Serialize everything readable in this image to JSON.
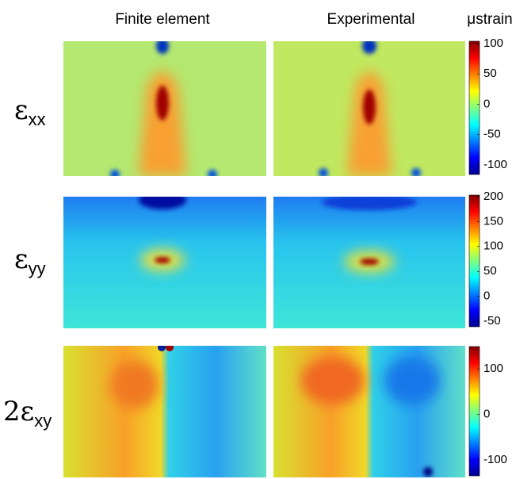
{
  "columns": [
    "Finite element",
    "Experimental"
  ],
  "unit": "μstrain",
  "rows": [
    {
      "symbol": "ε",
      "subscript": "xx",
      "colorbar": {
        "lim": [
          -116,
          104
        ],
        "ticks": [
          100,
          50,
          0,
          -50,
          -100
        ]
      }
    },
    {
      "symbol": "ε",
      "subscript": "yy",
      "colorbar": {
        "lim": [
          -61,
          203
        ],
        "ticks": [
          200,
          150,
          100,
          50,
          0,
          -50
        ]
      }
    },
    {
      "symbol": "2ε",
      "subscript": "xy",
      "colorbar": {
        "lim": [
          -135,
          149
        ],
        "ticks": [
          100,
          0,
          -100
        ]
      }
    }
  ]
}
